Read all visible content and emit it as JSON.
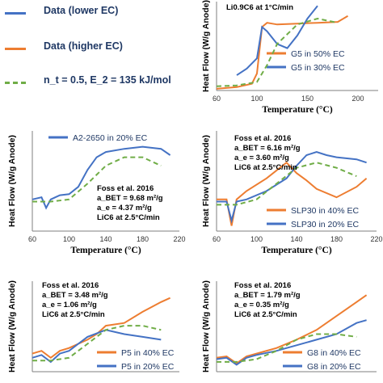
{
  "legend": {
    "items": [
      {
        "label": "Data (lower EC)",
        "color": "#4472c4",
        "style": "solid"
      },
      {
        "label": "Data (higher EC)",
        "color": "#ed7d31",
        "style": "solid"
      },
      {
        "label": "n_t = 0.5, E_2 = 135 kJ/mol",
        "color": "#70ad47",
        "style": "dashed"
      }
    ]
  },
  "chart_data": [
    {
      "id": "g5",
      "type": "line",
      "xlabel": "Temperature (°C)",
      "ylabel": "Heat Flow (W/g Anode)",
      "xlim": [
        60,
        220
      ],
      "xticks": [
        "60",
        "100",
        "150",
        "200"
      ],
      "annotations": [
        "Li0.9C6 at 1°C/min"
      ],
      "series": [
        {
          "name": "G5 in 50% EC",
          "color": "#ed7d31",
          "style": "solid",
          "x": [
            60,
            80,
            95,
            100,
            105,
            110,
            120,
            140,
            160,
            180,
            190
          ],
          "y": [
            0.02,
            0.04,
            0.08,
            0.2,
            0.75,
            0.8,
            0.78,
            0.79,
            0.8,
            0.81,
            0.88
          ]
        },
        {
          "name": "G5 in 30% EC",
          "color": "#4472c4",
          "style": "solid",
          "x": [
            80,
            90,
            100,
            105,
            110,
            120,
            130,
            140,
            150,
            160
          ],
          "y": [
            0.18,
            0.26,
            0.38,
            0.75,
            0.7,
            0.55,
            0.5,
            0.65,
            0.85,
            1.0
          ]
        },
        {
          "name": "",
          "color": "#70ad47",
          "style": "dashed",
          "x": [
            60,
            80,
            100,
            110,
            120,
            140,
            160,
            180
          ],
          "y": [
            0.05,
            0.06,
            0.1,
            0.3,
            0.55,
            0.78,
            0.85,
            0.8
          ]
        }
      ]
    },
    {
      "id": "a2",
      "type": "line",
      "xlabel": "Temperature (°C)",
      "ylabel": "Heat Flow (W/g Anode)",
      "xlim": [
        60,
        220
      ],
      "xticks": [
        "60",
        "100",
        "140",
        "180",
        "220"
      ],
      "annotations": [
        "Foss et al. 2016",
        "a_BET = 9.68 m²/g",
        "a_e = 4.37 m²/g",
        "LiC6 at 2.5°C/min"
      ],
      "series": [
        {
          "name": "A2-2650 in 20% EC",
          "color": "#4472c4",
          "style": "solid",
          "x": [
            60,
            70,
            75,
            80,
            85,
            90,
            100,
            110,
            120,
            130,
            140,
            160,
            180,
            200,
            210
          ],
          "y": [
            0.1,
            0.12,
            0.02,
            0.1,
            0.12,
            0.14,
            0.15,
            0.22,
            0.38,
            0.5,
            0.55,
            0.58,
            0.6,
            0.58,
            0.52
          ]
        },
        {
          "name": "",
          "color": "#70ad47",
          "style": "dashed",
          "x": [
            60,
            80,
            100,
            120,
            140,
            160,
            180,
            200
          ],
          "y": [
            0.08,
            0.08,
            0.1,
            0.25,
            0.42,
            0.5,
            0.5,
            0.42
          ]
        }
      ]
    },
    {
      "id": "slp30",
      "type": "line",
      "xlabel": "Temperature (°C)",
      "ylabel": "Heat Flow (W/g Anode)",
      "xlim": [
        60,
        220
      ],
      "xticks": [
        "60",
        "100",
        "140",
        "180",
        "220"
      ],
      "annotations": [
        "Foss et al. 2016",
        "a_BET = 6.16 m²/g",
        "a_e = 3.60 m²/g",
        "LiC6 at 2.5°C/min"
      ],
      "series": [
        {
          "name": "SLP30 in 40% EC",
          "color": "#ed7d31",
          "style": "solid",
          "x": [
            60,
            70,
            75,
            80,
            90,
            110,
            130,
            140,
            150,
            160,
            180,
            200,
            210
          ],
          "y": [
            0.1,
            0.1,
            -0.15,
            0.1,
            0.18,
            0.3,
            0.45,
            0.35,
            0.28,
            0.2,
            0.12,
            0.22,
            0.3
          ]
        },
        {
          "name": "SLP30 in 20% EC",
          "color": "#4472c4",
          "style": "solid",
          "x": [
            60,
            70,
            75,
            80,
            90,
            110,
            130,
            140,
            150,
            160,
            170,
            180,
            200,
            210
          ],
          "y": [
            0.08,
            0.08,
            -0.1,
            0.08,
            0.1,
            0.18,
            0.3,
            0.42,
            0.52,
            0.55,
            0.52,
            0.5,
            0.48,
            0.45
          ]
        },
        {
          "name": "",
          "color": "#70ad47",
          "style": "dashed",
          "x": [
            60,
            80,
            100,
            120,
            140,
            160,
            180,
            200
          ],
          "y": [
            0.05,
            0.05,
            0.1,
            0.25,
            0.4,
            0.45,
            0.4,
            0.32
          ]
        }
      ]
    },
    {
      "id": "p5",
      "type": "line",
      "xlabel": "",
      "ylabel": "Heat Flow (W/g Anode)",
      "xlim": [
        60,
        220
      ],
      "xticks": [],
      "annotations": [
        "Foss et al. 2016",
        "a_BET = 3.48 m²/g",
        "a_e = 1.06 m²/g",
        "LiC6 at 2.5°C/min"
      ],
      "series": [
        {
          "name": "P5 in 40% EC",
          "color": "#ed7d31",
          "style": "solid",
          "x": [
            60,
            70,
            80,
            90,
            100,
            110,
            120,
            130,
            140,
            160,
            180,
            200,
            210
          ],
          "y": [
            0.08,
            0.1,
            0.05,
            0.1,
            0.12,
            0.15,
            0.18,
            0.22,
            0.28,
            0.3,
            0.38,
            0.45,
            0.48
          ]
        },
        {
          "name": "P5 in 20% EC",
          "color": "#4472c4",
          "style": "solid",
          "x": [
            60,
            70,
            80,
            90,
            100,
            110,
            120,
            140,
            160,
            180,
            200
          ],
          "y": [
            0.05,
            0.07,
            0.02,
            0.08,
            0.1,
            0.15,
            0.2,
            0.25,
            0.22,
            0.2,
            0.18
          ]
        },
        {
          "name": "",
          "color": "#70ad47",
          "style": "dashed",
          "x": [
            60,
            80,
            100,
            120,
            140,
            160,
            180,
            200
          ],
          "y": [
            0.03,
            0.03,
            0.05,
            0.15,
            0.25,
            0.28,
            0.28,
            0.25
          ]
        }
      ]
    },
    {
      "id": "g8",
      "type": "line",
      "xlabel": "",
      "ylabel": "Heat Flow (W/g Anode)",
      "xlim": [
        60,
        220
      ],
      "xticks": [],
      "annotations": [
        "Foss et al. 2016",
        "a_BET = 1.79 m²/g",
        "a_e = 0.35 m²/g",
        "LiC6 at 2.5°C/min"
      ],
      "series": [
        {
          "name": "G8 in 40% EC",
          "color": "#ed7d31",
          "style": "solid",
          "x": [
            60,
            70,
            80,
            90,
            100,
            120,
            140,
            160,
            180,
            200,
            210
          ],
          "y": [
            0.05,
            0.06,
            0.01,
            0.06,
            0.08,
            0.12,
            0.18,
            0.25,
            0.35,
            0.45,
            0.5
          ]
        },
        {
          "name": "G8 in 20% EC",
          "color": "#4472c4",
          "style": "solid",
          "x": [
            60,
            70,
            80,
            90,
            100,
            120,
            140,
            160,
            180,
            200,
            210
          ],
          "y": [
            0.04,
            0.05,
            0.0,
            0.05,
            0.07,
            0.1,
            0.14,
            0.18,
            0.22,
            0.3,
            0.32
          ]
        },
        {
          "name": "",
          "color": "#70ad47",
          "style": "dashed",
          "x": [
            60,
            80,
            100,
            120,
            140,
            160,
            180,
            200
          ],
          "y": [
            0.02,
            0.02,
            0.04,
            0.1,
            0.18,
            0.22,
            0.22,
            0.2
          ]
        }
      ]
    }
  ]
}
